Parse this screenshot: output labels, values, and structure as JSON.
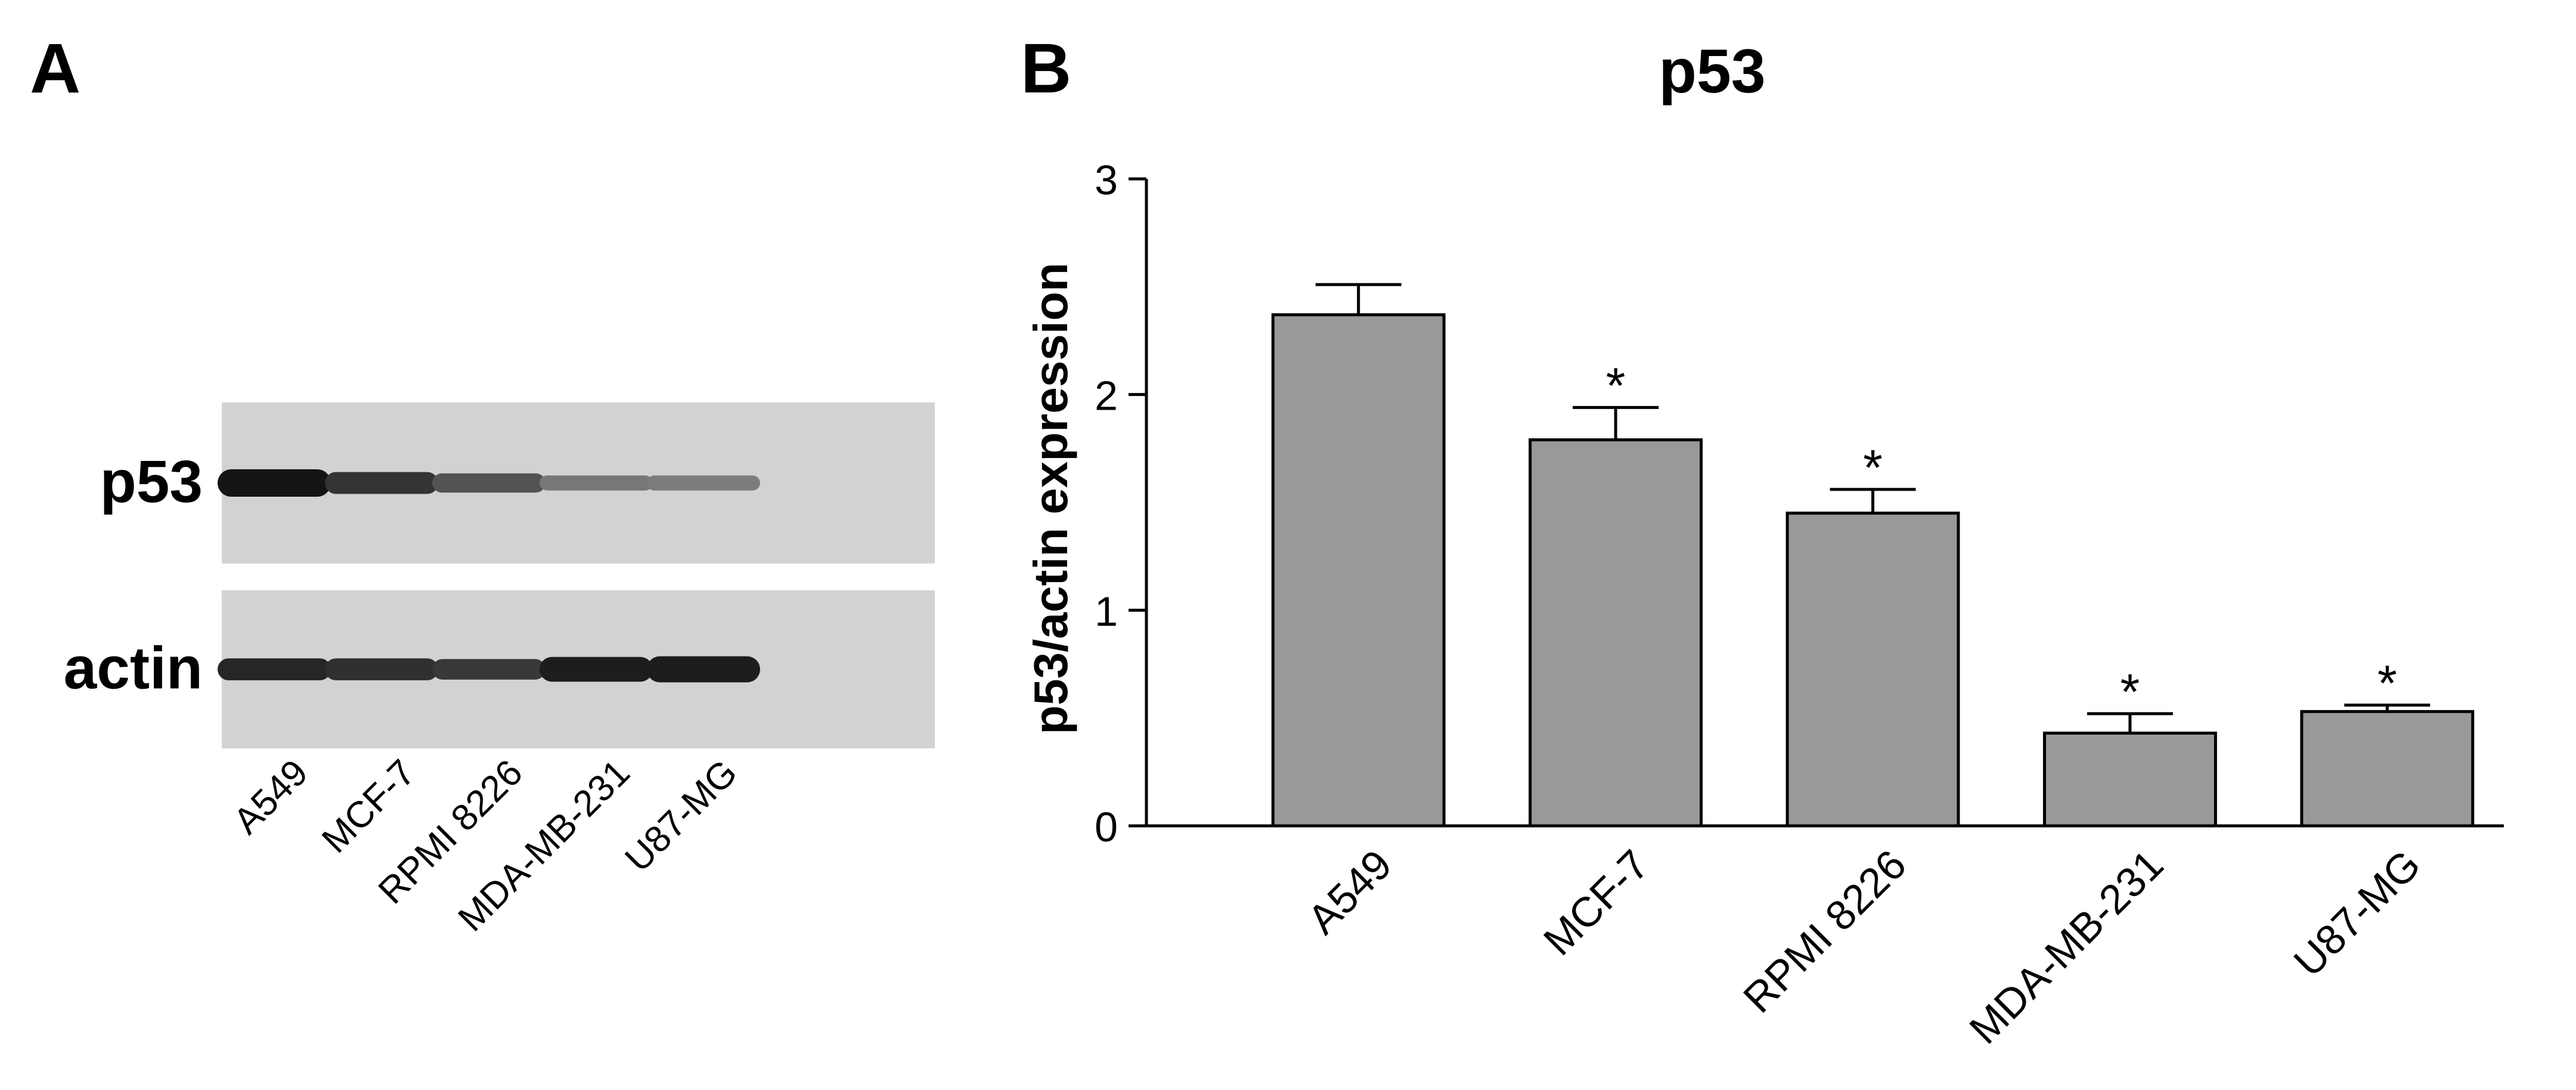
{
  "panel_a": {
    "label": "A",
    "blots": [
      {
        "protein": "p53",
        "band_intensity": [
          1.0,
          0.82,
          0.65,
          0.45,
          0.42
        ],
        "band_thickness": [
          1.0,
          0.8,
          0.7,
          0.55,
          0.55
        ]
      },
      {
        "protein": "actin",
        "band_intensity": [
          0.9,
          0.85,
          0.8,
          0.95,
          0.95
        ],
        "band_thickness": [
          0.8,
          0.8,
          0.75,
          0.9,
          0.95
        ]
      }
    ],
    "lanes": [
      "A549",
      "MCF-7",
      "RPMI 8226",
      "MDA-MB-231",
      "U87-MG"
    ]
  },
  "chart_data": {
    "panel_label": "B",
    "type": "bar",
    "title": "p53",
    "ylabel": "p53/actin expression",
    "xlabel": "",
    "categories": [
      "A549",
      "MCF-7",
      "RPMI 8226",
      "MDA-MB-231",
      "U87-MG"
    ],
    "values": [
      2.37,
      1.79,
      1.45,
      0.43,
      0.53
    ],
    "error": [
      0.14,
      0.15,
      0.11,
      0.09,
      0.03
    ],
    "significance": [
      "",
      "*",
      "*",
      "*",
      "*"
    ],
    "ylim": [
      0,
      3
    ],
    "yticks": [
      0,
      1,
      2,
      3
    ],
    "bar_color": "#999999",
    "grid": false,
    "legend": false
  }
}
